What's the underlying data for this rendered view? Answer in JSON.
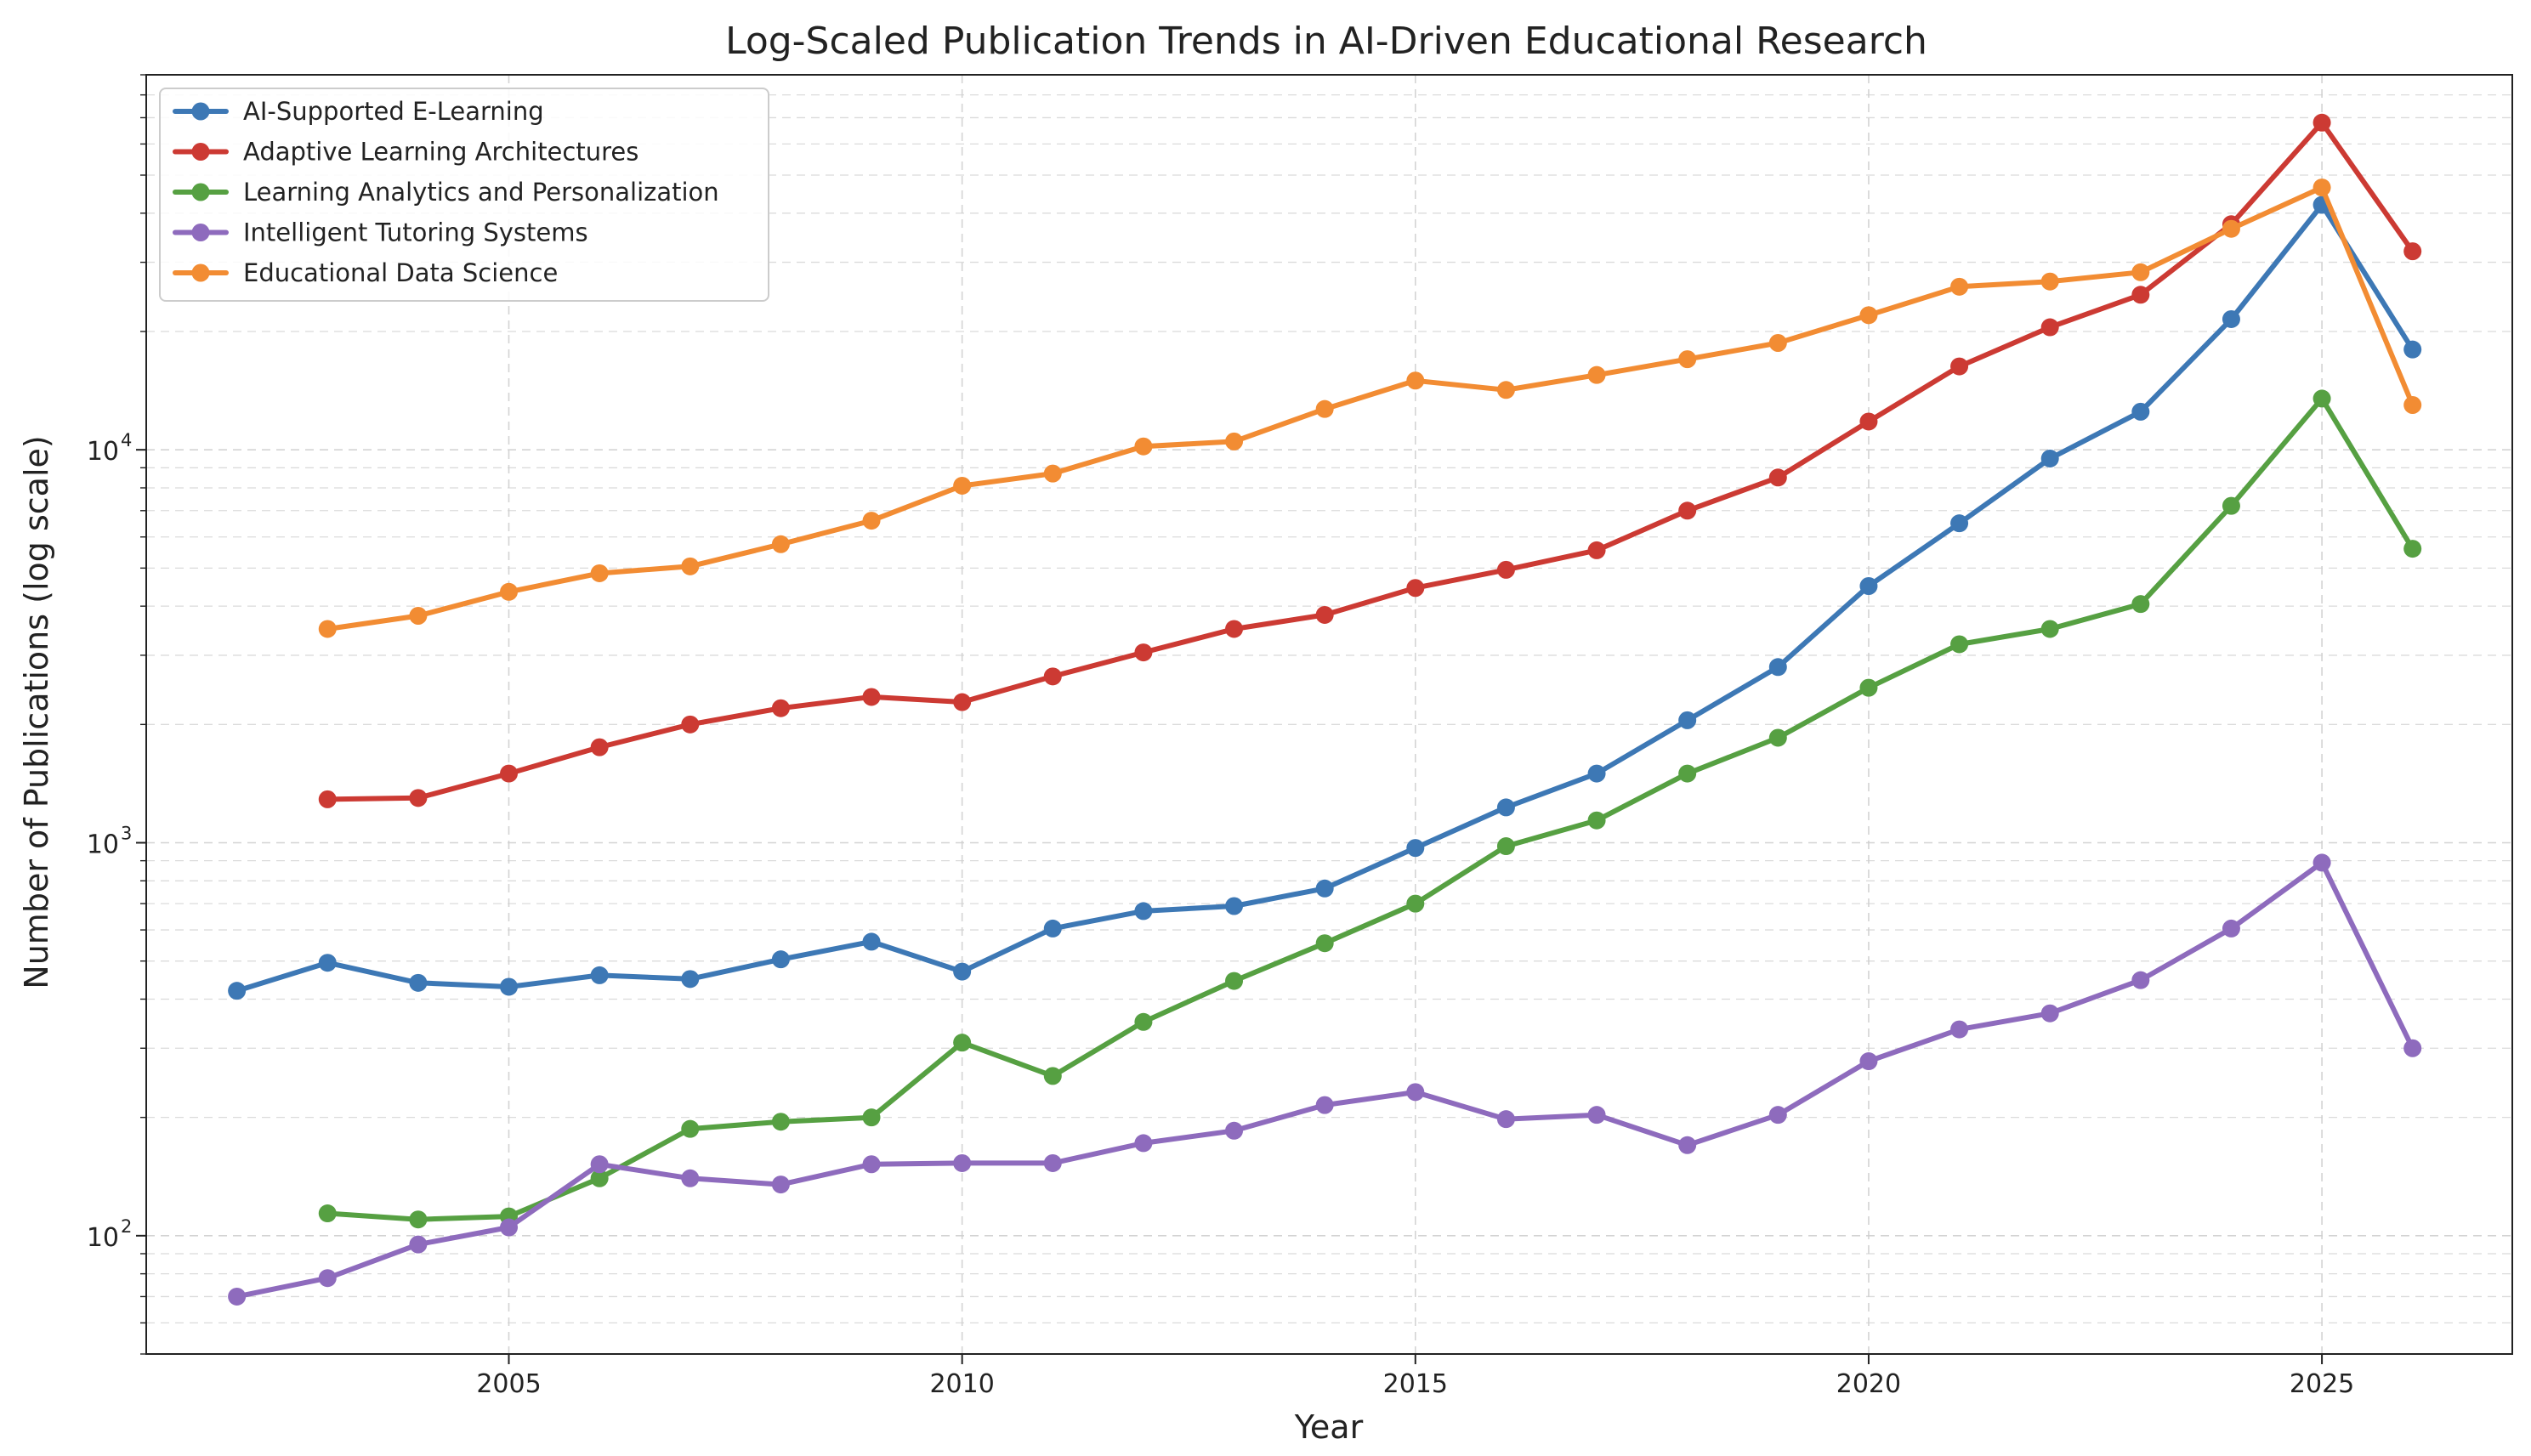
{
  "chart_data": {
    "type": "line",
    "title": "Log-Scaled Publication Trends in AI-Driven Educational Research",
    "xlabel": "Year",
    "ylabel": "Number of Publications (log scale)",
    "xlim": [
      2001.0,
      2027.1
    ],
    "ylim": [
      50,
      90000
    ],
    "yscale": "log",
    "grid": true,
    "legend_position": "top-left",
    "x_ticks": [
      2005,
      2010,
      2015,
      2020,
      2025
    ],
    "x_tick_labels": [
      "2005",
      "2010",
      "2015",
      "2020",
      "2025"
    ],
    "y_ticks": [
      {
        "value": 100,
        "base": "10",
        "exp": "2"
      },
      {
        "value": 1000,
        "base": "10",
        "exp": "3"
      },
      {
        "value": 10000,
        "base": "10",
        "exp": "4"
      }
    ],
    "series": [
      {
        "name": "AI-Supported E-Learning",
        "color": "#3d78b5",
        "x": [
          2002,
          2003,
          2004,
          2005,
          2006,
          2007,
          2008,
          2009,
          2010,
          2011,
          2012,
          2013,
          2014,
          2015,
          2016,
          2017,
          2018,
          2019,
          2020,
          2021,
          2022,
          2023,
          2024,
          2025,
          2026
        ],
        "values": [
          420,
          495,
          440,
          430,
          460,
          450,
          505,
          560,
          470,
          605,
          670,
          690,
          765,
          970,
          1230,
          1500,
          2050,
          2800,
          4500,
          6500,
          9500,
          12500,
          21500,
          42000,
          18000
        ]
      },
      {
        "name": "Adaptive Learning Architectures",
        "color": "#cc3a33",
        "x": [
          2003,
          2004,
          2005,
          2006,
          2007,
          2008,
          2009,
          2010,
          2011,
          2012,
          2013,
          2014,
          2015,
          2016,
          2017,
          2018,
          2019,
          2020,
          2021,
          2022,
          2023,
          2024,
          2025,
          2026
        ],
        "values": [
          1290,
          1300,
          1500,
          1750,
          2000,
          2200,
          2350,
          2280,
          2650,
          3050,
          3500,
          3800,
          4450,
          4950,
          5550,
          7000,
          8500,
          11800,
          16300,
          20500,
          24800,
          37500,
          68000,
          32000
        ]
      },
      {
        "name": "Learning Analytics and Personalization",
        "color": "#56a042",
        "x": [
          2003,
          2004,
          2005,
          2006,
          2007,
          2008,
          2009,
          2010,
          2011,
          2012,
          2013,
          2014,
          2015,
          2016,
          2017,
          2018,
          2019,
          2020,
          2021,
          2022,
          2023,
          2024,
          2025,
          2026
        ],
        "values": [
          114,
          110,
          112,
          140,
          187,
          195,
          200,
          310,
          255,
          350,
          445,
          555,
          700,
          980,
          1140,
          1500,
          1850,
          2480,
          3200,
          3500,
          4050,
          7200,
          13500,
          5600
        ]
      },
      {
        "name": "Intelligent Tutoring Systems",
        "color": "#8e6bbd",
        "x": [
          2002,
          2003,
          2004,
          2005,
          2006,
          2007,
          2008,
          2009,
          2010,
          2011,
          2012,
          2013,
          2014,
          2015,
          2016,
          2017,
          2018,
          2019,
          2020,
          2021,
          2022,
          2023,
          2024,
          2025,
          2026
        ],
        "values": [
          70,
          78,
          95,
          105,
          152,
          140,
          135,
          152,
          153,
          153,
          172,
          185,
          215,
          232,
          198,
          203,
          170,
          203,
          278,
          335,
          368,
          447,
          605,
          890,
          300
        ]
      },
      {
        "name": "Educational Data Science",
        "color": "#f28c33",
        "x": [
          2003,
          2004,
          2005,
          2006,
          2007,
          2008,
          2009,
          2010,
          2011,
          2012,
          2013,
          2014,
          2015,
          2016,
          2017,
          2018,
          2019,
          2020,
          2021,
          2022,
          2023,
          2024,
          2025,
          2026
        ],
        "values": [
          3500,
          3780,
          4350,
          4850,
          5050,
          5750,
          6600,
          8100,
          8700,
          10200,
          10500,
          12700,
          15000,
          14200,
          15500,
          17000,
          18700,
          22000,
          26000,
          26800,
          28300,
          36500,
          46500,
          13000
        ]
      }
    ]
  }
}
